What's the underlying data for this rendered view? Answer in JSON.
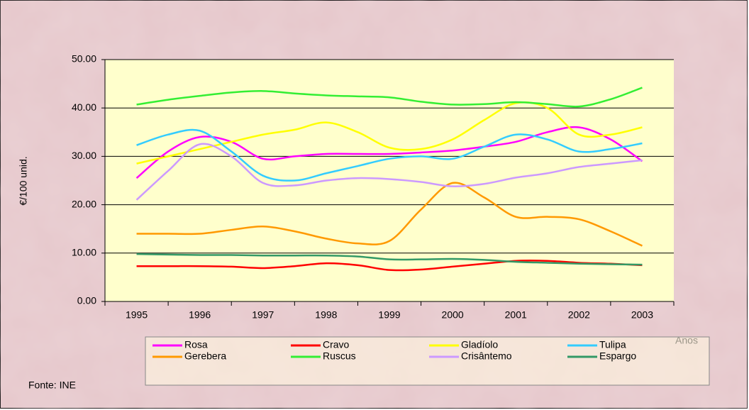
{
  "chart_data": {
    "type": "line",
    "y_label": "€/100 unid.",
    "x_label": "Anos",
    "source": "Fonte: INE",
    "categories": [
      "1995",
      null,
      "1996",
      null,
      "1997",
      null,
      "1998",
      null,
      "1999",
      null,
      "2000",
      null,
      "2001",
      null,
      "2002",
      null,
      "2003"
    ],
    "ylim": [
      0,
      50
    ],
    "yticks": [
      {
        "value": 0,
        "label": "0.00"
      },
      {
        "value": 10,
        "label": "10.00"
      },
      {
        "value": 20,
        "label": "20.00"
      },
      {
        "value": 30,
        "label": "30.00"
      },
      {
        "value": 40,
        "label": "40.00"
      },
      {
        "value": 50,
        "label": "50.00"
      }
    ],
    "grid": true,
    "series": [
      {
        "name": "Rosa",
        "color": "#ff00ff",
        "values": [
          25.5,
          31,
          34,
          33,
          29.5,
          30,
          30.5,
          30.5,
          30.5,
          30.8,
          31.2,
          32,
          33,
          35,
          36,
          33.5,
          29
        ]
      },
      {
        "name": "Cravo",
        "color": "#ff0000",
        "values": [
          7.3,
          7.3,
          7.3,
          7.2,
          6.9,
          7.3,
          7.9,
          7.5,
          6.5,
          6.6,
          7.2,
          7.8,
          8.4,
          8.4,
          8.0,
          7.8,
          7.5
        ]
      },
      {
        "name": "Gladíolo",
        "color": "#ffff00",
        "values": [
          28.5,
          30,
          31.5,
          33,
          34.5,
          35.5,
          37,
          35,
          31.8,
          31.5,
          33.5,
          37.5,
          41,
          40,
          34.5,
          34.5,
          36
        ]
      },
      {
        "name": "Tulipa",
        "color": "#33ccff",
        "values": [
          32.3,
          34.5,
          35.3,
          31,
          26,
          25,
          26.5,
          28,
          29.5,
          30,
          29.5,
          32,
          34.5,
          33.5,
          31,
          31.5,
          32.7
        ]
      },
      {
        "name": "Gerebera",
        "color": "#ff9900",
        "values": [
          14,
          14,
          14,
          14.8,
          15.5,
          14.5,
          13,
          12,
          12.5,
          19,
          24.5,
          21.5,
          17.5,
          17.5,
          17,
          14.5,
          11.5
        ]
      },
      {
        "name": "Ruscus",
        "color": "#33ee33",
        "values": [
          40.7,
          41.7,
          42.5,
          43.2,
          43.5,
          43,
          42.6,
          42.4,
          42.2,
          41.3,
          40.7,
          40.8,
          41.2,
          40.8,
          40.3,
          41.8,
          44.2
        ]
      },
      {
        "name": "Crisântemo",
        "color": "#cc99ff",
        "values": [
          21,
          27,
          32.5,
          30,
          24.5,
          24,
          25,
          25.5,
          25.3,
          24.7,
          23.8,
          24.3,
          25.6,
          26.5,
          27.8,
          28.5,
          29.2
        ]
      },
      {
        "name": "Espargo",
        "color": "#339966",
        "values": [
          9.8,
          9.7,
          9.6,
          9.6,
          9.5,
          9.5,
          9.5,
          9.3,
          8.7,
          8.7,
          8.8,
          8.6,
          8.2,
          8.0,
          7.8,
          7.7,
          7.6
        ]
      }
    ]
  }
}
